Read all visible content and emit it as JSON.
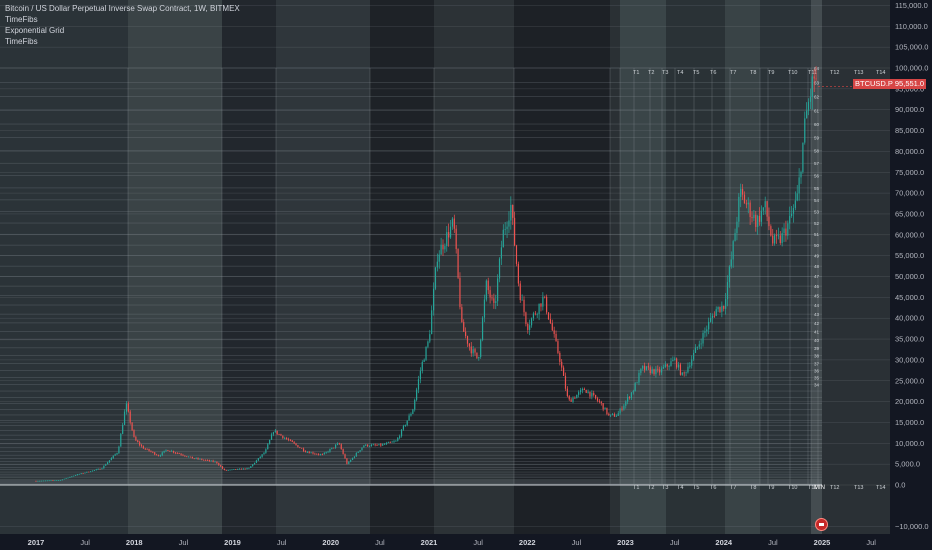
{
  "legend": {
    "title": "Bitcoin / US Dollar Perpetual Inverse Swap Contract, 1W, BITMEX",
    "studies": [
      "TimeFibs",
      "Exponential Grid",
      "TimeFibs"
    ]
  },
  "price_badge": {
    "ticker": "BTCUSD.P",
    "price": "95,551.0"
  },
  "colors": {
    "up": "#26a69a",
    "down": "#ef5350",
    "background": "#0e1116",
    "grid": "#3a3f46",
    "badge": "#d64545"
  },
  "chart_data": {
    "type": "candlestick",
    "title": "Bitcoin / US Dollar Perpetual Inverse Swap Contract, 1W, BITMEX",
    "ylim": [
      -10000,
      115000
    ],
    "xlim": [
      "2017-01",
      "2025-08"
    ],
    "y_ticks": [
      115000,
      110000,
      105000,
      100000,
      95000,
      90000,
      85000,
      80000,
      75000,
      70000,
      65000,
      60000,
      55000,
      50000,
      45000,
      40000,
      35000,
      30000,
      25000,
      20000,
      15000,
      10000,
      5000,
      0,
      -10000
    ],
    "y_tick_labels": [
      "115,000.0",
      "110,000.0",
      "105,000.0",
      "100,000.0",
      "95,000.0",
      "90,000.0",
      "85,000.0",
      "80,000.0",
      "75,000.0",
      "70,000.0",
      "65,000.0",
      "60,000.0",
      "55,000.0",
      "50,000.0",
      "45,000.0",
      "40,000.0",
      "35,000.0",
      "30,000.0",
      "25,000.0",
      "20,000.0",
      "15,000.0",
      "10,000.0",
      "5,000.0",
      "0.0",
      "−10,000.0"
    ],
    "x_ticks": [
      {
        "t": "2017-01",
        "label": "2017"
      },
      {
        "t": "2017-07",
        "label": "Jul"
      },
      {
        "t": "2018-01",
        "label": "2018"
      },
      {
        "t": "2018-07",
        "label": "Jul"
      },
      {
        "t": "2019-01",
        "label": "2019"
      },
      {
        "t": "2019-07",
        "label": "Jul"
      },
      {
        "t": "2020-01",
        "label": "2020"
      },
      {
        "t": "2020-07",
        "label": "Jul"
      },
      {
        "t": "2021-01",
        "label": "2021"
      },
      {
        "t": "2021-07",
        "label": "Jul"
      },
      {
        "t": "2022-01",
        "label": "2022"
      },
      {
        "t": "2022-07",
        "label": "Jul"
      },
      {
        "t": "2023-01",
        "label": "2023"
      },
      {
        "t": "2023-07",
        "label": "Jul"
      },
      {
        "t": "2024-01",
        "label": "2024"
      },
      {
        "t": "2024-07",
        "label": "Jul"
      },
      {
        "t": "2025-01",
        "label": "2025"
      },
      {
        "t": "2025-07",
        "label": "Jul"
      }
    ],
    "price_path": [
      [
        "2017-01",
        1000
      ],
      [
        "2017-04",
        1200
      ],
      [
        "2017-06",
        2500
      ],
      [
        "2017-09",
        4000
      ],
      [
        "2017-11",
        8000
      ],
      [
        "2017-12",
        19500
      ],
      [
        "2018-01",
        11000
      ],
      [
        "2018-02",
        9000
      ],
      [
        "2018-04",
        7000
      ],
      [
        "2018-05",
        8500
      ],
      [
        "2018-08",
        6500
      ],
      [
        "2018-11",
        5500
      ],
      [
        "2018-12",
        3500
      ],
      [
        "2019-03",
        4000
      ],
      [
        "2019-05",
        8000
      ],
      [
        "2019-06",
        13000
      ],
      [
        "2019-08",
        10500
      ],
      [
        "2019-10",
        8000
      ],
      [
        "2019-12",
        7200
      ],
      [
        "2020-02",
        10000
      ],
      [
        "2020-03",
        5000
      ],
      [
        "2020-05",
        9500
      ],
      [
        "2020-07",
        9500
      ],
      [
        "2020-09",
        10500
      ],
      [
        "2020-11",
        18000
      ],
      [
        "2020-12",
        28000
      ],
      [
        "2021-01",
        35000
      ],
      [
        "2021-02",
        55000
      ],
      [
        "2021-04",
        63000
      ],
      [
        "2021-05",
        38000
      ],
      [
        "2021-06",
        33000
      ],
      [
        "2021-07",
        30000
      ],
      [
        "2021-08",
        48000
      ],
      [
        "2021-09",
        42000
      ],
      [
        "2021-10",
        60000
      ],
      [
        "2021-11",
        67000
      ],
      [
        "2021-12",
        47000
      ],
      [
        "2022-01",
        38000
      ],
      [
        "2022-03",
        45000
      ],
      [
        "2022-05",
        30000
      ],
      [
        "2022-06",
        20000
      ],
      [
        "2022-08",
        23000
      ],
      [
        "2022-10",
        19500
      ],
      [
        "2022-11",
        16500
      ],
      [
        "2022-12",
        16800
      ],
      [
        "2023-02",
        23000
      ],
      [
        "2023-03",
        28000
      ],
      [
        "2023-05",
        27000
      ],
      [
        "2023-07",
        30000
      ],
      [
        "2023-08",
        26000
      ],
      [
        "2023-10",
        34000
      ],
      [
        "2023-12",
        42000
      ],
      [
        "2024-01",
        43000
      ],
      [
        "2024-02",
        55000
      ],
      [
        "2024-03",
        70000
      ],
      [
        "2024-05",
        63000
      ],
      [
        "2024-06",
        67000
      ],
      [
        "2024-07",
        58000
      ],
      [
        "2024-08",
        59000
      ],
      [
        "2024-09",
        63000
      ],
      [
        "2024-10",
        69000
      ],
      [
        "2024-11",
        88000
      ],
      [
        "2024-12",
        98000
      ],
      [
        "2024-12-15",
        95551
      ]
    ],
    "time_fib_labels": [
      "T1",
      "T2",
      "T3",
      "T4",
      "T5",
      "T6",
      "T7",
      "T8",
      "T9",
      "T10",
      "T11",
      "T12",
      "T13",
      "T14"
    ],
    "grid_level_labels": [
      "64",
      "63",
      "62",
      "61",
      "60",
      "59",
      "58",
      "57",
      "56",
      "55",
      "54",
      "53",
      "52",
      "51",
      "50",
      "49",
      "48",
      "47",
      "46",
      "45",
      "44",
      "43",
      "42",
      "41",
      "40",
      "39",
      "38",
      "37",
      "36",
      "35",
      "34"
    ],
    "min_label": "MIN",
    "last_price": 95551
  }
}
